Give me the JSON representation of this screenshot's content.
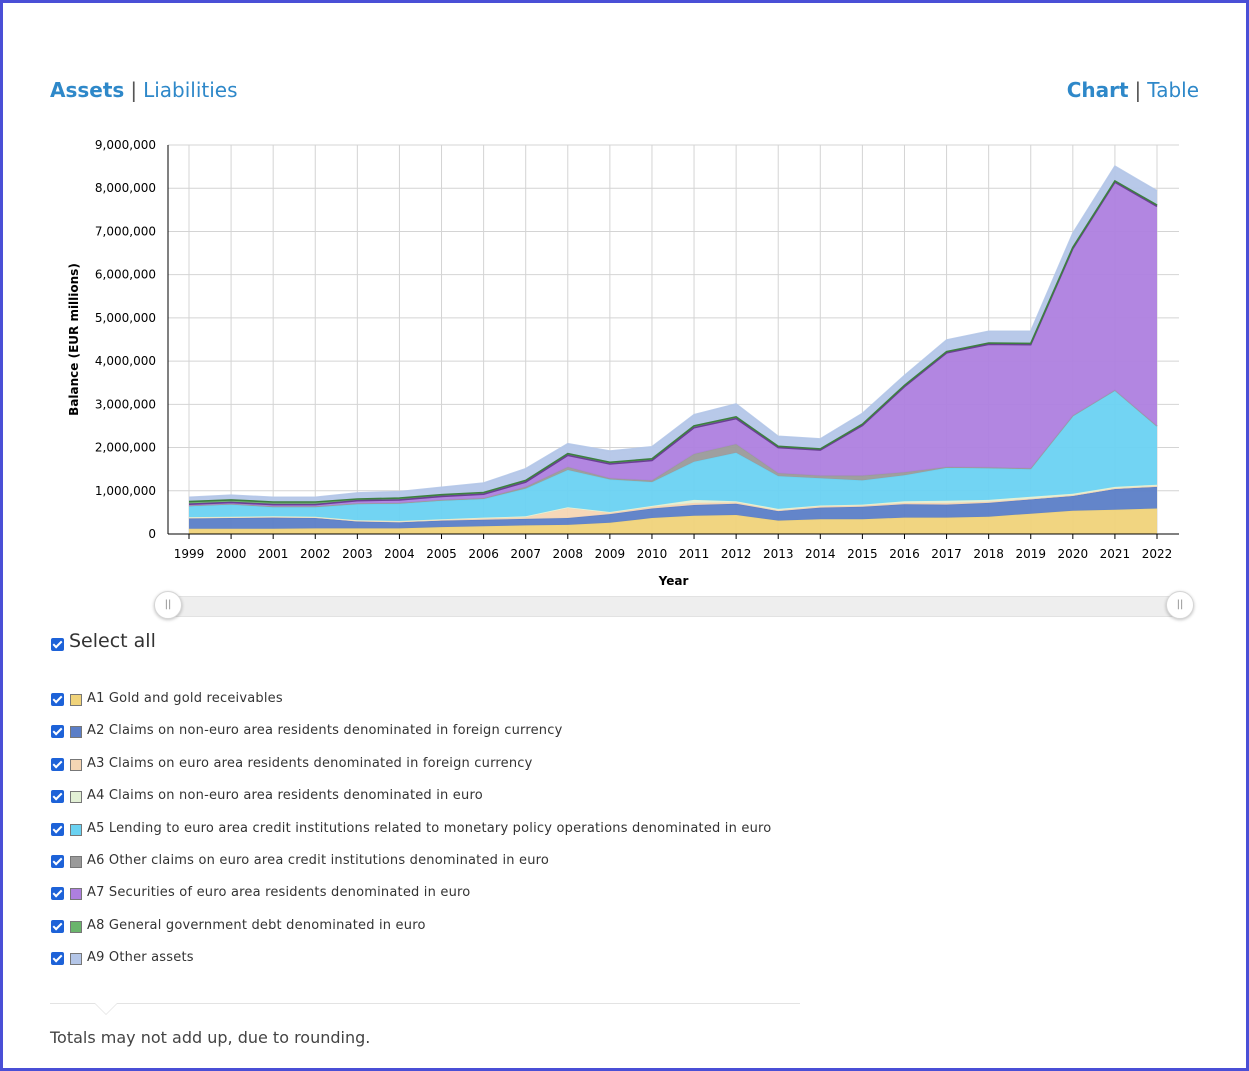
{
  "view_toggle": {
    "assets": "Assets",
    "liabilities": "Liabilities",
    "chart": "Chart",
    "table": "Table",
    "separator": "|"
  },
  "select_all_label": "Select all",
  "footnote": "Totals may not add up, due to rounding.",
  "colors": {
    "A1": "#f0d37a",
    "A2": "#5b7ec7",
    "A3": "#f5d6b4",
    "A4": "#e2f0d5",
    "A5": "#6ad2f2",
    "A6": "#9a9a9a",
    "A7": "#ae7fdf",
    "A8": "#6ab56c",
    "A9": "#b4c6e8"
  },
  "legend": [
    {
      "code": "A1",
      "label": "A1 Gold and gold receivables"
    },
    {
      "code": "A2",
      "label": "A2 Claims on non-euro area residents denominated in foreign currency"
    },
    {
      "code": "A3",
      "label": "A3 Claims on euro area residents denominated in foreign currency"
    },
    {
      "code": "A4",
      "label": "A4 Claims on non-euro area residents denominated in euro"
    },
    {
      "code": "A5",
      "label": "A5 Lending to euro area credit institutions related to monetary policy operations denominated in euro"
    },
    {
      "code": "A6",
      "label": "A6 Other claims on euro area credit institutions denominated in euro"
    },
    {
      "code": "A7",
      "label": "A7 Securities of euro area residents denominated in euro"
    },
    {
      "code": "A8",
      "label": "A8 General government debt denominated in euro"
    },
    {
      "code": "A9",
      "label": "A9 Other assets"
    }
  ],
  "chart_data": {
    "type": "area",
    "stacked": true,
    "xlabel": "Year",
    "ylabel": "Balance (EUR millions)",
    "ylim": [
      0,
      9000000
    ],
    "yticks": [
      0,
      1000000,
      2000000,
      3000000,
      4000000,
      5000000,
      6000000,
      7000000,
      8000000,
      9000000
    ],
    "ytick_labels": [
      "0",
      "1,000,000",
      "2,000,000",
      "3,000,000",
      "4,000,000",
      "5,000,000",
      "6,000,000",
      "7,000,000",
      "8,000,000",
      "9,000,000"
    ],
    "x": [
      "1999",
      "2000",
      "2001",
      "2002",
      "2003",
      "2004",
      "2005",
      "2006",
      "2007",
      "2008",
      "2009",
      "2010",
      "2011",
      "2012",
      "2013",
      "2014",
      "2015",
      "2016",
      "2017",
      "2018",
      "2019",
      "2020",
      "2021",
      "2022"
    ],
    "grid": true,
    "series": [
      {
        "name": "A1 Gold and gold receivables",
        "code": "A1",
        "values": [
          120000,
          120000,
          120000,
          130000,
          130000,
          130000,
          160000,
          180000,
          200000,
          210000,
          260000,
          370000,
          420000,
          440000,
          310000,
          340000,
          340000,
          380000,
          380000,
          400000,
          470000,
          540000,
          560000,
          590000
        ]
      },
      {
        "name": "A2 Claims on non-euro area residents denominated in foreign currency",
        "code": "A2",
        "values": [
          240000,
          250000,
          260000,
          240000,
          160000,
          140000,
          150000,
          150000,
          150000,
          160000,
          200000,
          220000,
          250000,
          260000,
          220000,
          270000,
          290000,
          310000,
          300000,
          320000,
          330000,
          340000,
          480000,
          500000
        ]
      },
      {
        "name": "A3 Claims on euro area residents denominated in foreign currency",
        "code": "A3",
        "values": [
          20000,
          20000,
          20000,
          20000,
          20000,
          20000,
          20000,
          30000,
          40000,
          230000,
          30000,
          40000,
          50000,
          30000,
          20000,
          30000,
          30000,
          30000,
          40000,
          30000,
          20000,
          20000,
          20000,
          20000
        ]
      },
      {
        "name": "A4 Claims on non-euro area residents denominated in euro",
        "code": "A4",
        "values": [
          10000,
          10000,
          10000,
          10000,
          10000,
          10000,
          10000,
          20000,
          20000,
          20000,
          20000,
          20000,
          70000,
          30000,
          30000,
          20000,
          20000,
          40000,
          50000,
          40000,
          40000,
          30000,
          30000,
          30000
        ]
      },
      {
        "name": "A5 Lending to euro area credit institutions related to monetary policy operations denominated in euro",
        "code": "A5",
        "values": [
          250000,
          280000,
          210000,
          220000,
          370000,
          400000,
          430000,
          430000,
          640000,
          860000,
          750000,
          550000,
          880000,
          1120000,
          760000,
          630000,
          560000,
          600000,
          760000,
          730000,
          640000,
          1800000,
          2230000,
          1350000
        ]
      },
      {
        "name": "A6 Other claims on euro area credit institutions denominated in euro",
        "code": "A6",
        "values": [
          20000,
          20000,
          20000,
          20000,
          20000,
          20000,
          20000,
          20000,
          40000,
          70000,
          30000,
          40000,
          180000,
          200000,
          70000,
          60000,
          110000,
          70000,
          20000,
          20000,
          20000,
          10000,
          10000,
          10000
        ]
      },
      {
        "name": "A7 Securities of euro area residents denominated in euro",
        "code": "A7",
        "values": [
          30000,
          30000,
          40000,
          40000,
          60000,
          70000,
          80000,
          90000,
          110000,
          270000,
          330000,
          460000,
          610000,
          590000,
          590000,
          590000,
          1160000,
          1980000,
          2640000,
          2850000,
          2860000,
          3860000,
          4810000,
          5080000
        ]
      },
      {
        "name": "A8 General government debt denominated in euro",
        "code": "A8",
        "values": [
          60000,
          60000,
          60000,
          60000,
          40000,
          40000,
          40000,
          40000,
          40000,
          40000,
          40000,
          40000,
          40000,
          40000,
          30000,
          30000,
          30000,
          30000,
          30000,
          30000,
          30000,
          30000,
          30000,
          30000
        ]
      },
      {
        "name": "A9 Other assets",
        "code": "A9",
        "values": [
          100000,
          110000,
          110000,
          110000,
          140000,
          150000,
          170000,
          220000,
          270000,
          230000,
          260000,
          280000,
          260000,
          300000,
          230000,
          230000,
          250000,
          230000,
          270000,
          270000,
          280000,
          330000,
          340000,
          330000
        ]
      }
    ]
  }
}
